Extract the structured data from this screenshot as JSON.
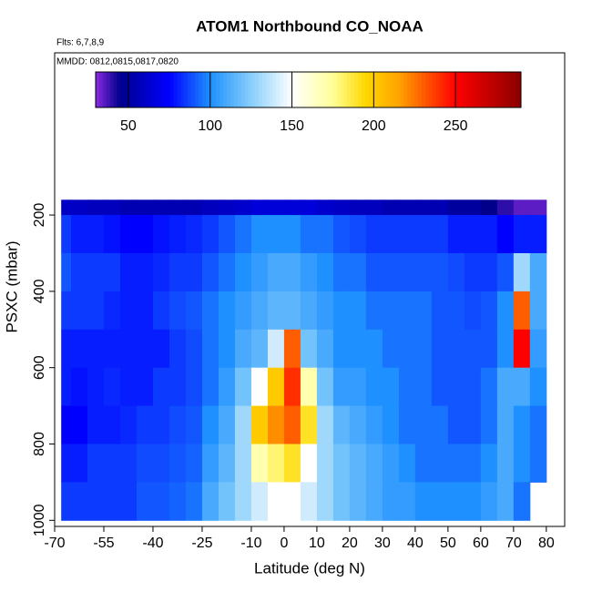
{
  "chart_data": {
    "type": "heatmap",
    "title": "ATOM1 Northbound CO_NOAA",
    "annotations": [
      "Flts: 6,7,8,9",
      "MMDD: 0812,0815,0817,0820"
    ],
    "x_label": "Latitude (deg N)",
    "y_label": "PSXC (mbar)",
    "xlim": [
      -70,
      85.6
    ],
    "ylim": [
      1016,
      -225
    ],
    "xticks": [
      -70,
      -55,
      -40,
      -25,
      -10,
      0,
      10,
      20,
      30,
      40,
      50,
      60,
      70,
      80
    ],
    "yticks": [
      200,
      400,
      600,
      800,
      1000
    ],
    "x_edges": [
      -68,
      -65,
      -60,
      -55,
      -50,
      -45,
      -40,
      -35,
      -30,
      -25,
      -20,
      -15,
      -10,
      -5,
      0,
      5,
      10,
      15,
      20,
      25,
      30,
      35,
      40,
      45,
      50,
      55,
      60,
      65,
      70,
      75,
      80
    ],
    "y_edges": [
      160,
      200,
      300,
      400,
      500,
      600,
      700,
      800,
      900,
      1000
    ],
    "z": [
      [
        60,
        60,
        58,
        58,
        55,
        55,
        55,
        55,
        55,
        58,
        60,
        62,
        65,
        65,
        65,
        65,
        62,
        60,
        58,
        58,
        55,
        55,
        55,
        55,
        50,
        50,
        45,
        40,
        35,
        35
      ],
      [
        85,
        80,
        80,
        78,
        75,
        75,
        78,
        80,
        82,
        85,
        90,
        95,
        100,
        100,
        100,
        95,
        95,
        90,
        88,
        85,
        85,
        85,
        85,
        85,
        80,
        80,
        80,
        75,
        80,
        80
      ],
      [
        90,
        85,
        85,
        85,
        80,
        80,
        82,
        85,
        85,
        90,
        95,
        100,
        105,
        110,
        110,
        105,
        100,
        95,
        95,
        90,
        90,
        90,
        90,
        90,
        88,
        85,
        85,
        90,
        130,
        110
      ],
      [
        85,
        85,
        85,
        82,
        80,
        80,
        85,
        88,
        90,
        95,
        100,
        105,
        110,
        115,
        115,
        110,
        105,
        100,
        100,
        95,
        95,
        95,
        95,
        90,
        90,
        88,
        90,
        100,
        230,
        110
      ],
      [
        80,
        80,
        80,
        80,
        80,
        80,
        80,
        85,
        88,
        95,
        100,
        110,
        115,
        140,
        230,
        120,
        110,
        100,
        100,
        100,
        95,
        95,
        95,
        90,
        90,
        90,
        90,
        100,
        250,
        105
      ],
      [
        80,
        78,
        80,
        82,
        80,
        80,
        85,
        85,
        88,
        95,
        105,
        120,
        150,
        200,
        240,
        170,
        120,
        105,
        105,
        100,
        100,
        95,
        95,
        90,
        90,
        90,
        95,
        110,
        110,
        100
      ],
      [
        75,
        75,
        80,
        80,
        82,
        85,
        85,
        88,
        90,
        100,
        110,
        130,
        200,
        220,
        230,
        190,
        130,
        115,
        110,
        105,
        100,
        95,
        95,
        95,
        90,
        90,
        95,
        110,
        100,
        95
      ],
      [
        80,
        80,
        85,
        85,
        85,
        88,
        88,
        90,
        92,
        105,
        115,
        130,
        170,
        180,
        190,
        150,
        130,
        120,
        115,
        110,
        105,
        100,
        95,
        95,
        95,
        95,
        100,
        110,
        100,
        95
      ],
      [
        85,
        85,
        85,
        85,
        85,
        90,
        90,
        92,
        95,
        110,
        120,
        130,
        140,
        150,
        150,
        140,
        130,
        120,
        115,
        110,
        105,
        105,
        100,
        100,
        100,
        100,
        105,
        110,
        95,
        null
      ]
    ],
    "clim": [
      30,
      290
    ],
    "cticks": [
      50,
      100,
      150,
      200,
      250
    ],
    "colorscale": [
      [
        30,
        "#8a2be2"
      ],
      [
        45,
        "#00008b"
      ],
      [
        75,
        "#0000ff"
      ],
      [
        100,
        "#1e90ff"
      ],
      [
        125,
        "#87cefa"
      ],
      [
        150,
        "#ffffff"
      ],
      [
        175,
        "#ffff99"
      ],
      [
        195,
        "#ffd700"
      ],
      [
        215,
        "#ffa500"
      ],
      [
        250,
        "#ff0000"
      ],
      [
        290,
        "#8b0000"
      ]
    ]
  }
}
